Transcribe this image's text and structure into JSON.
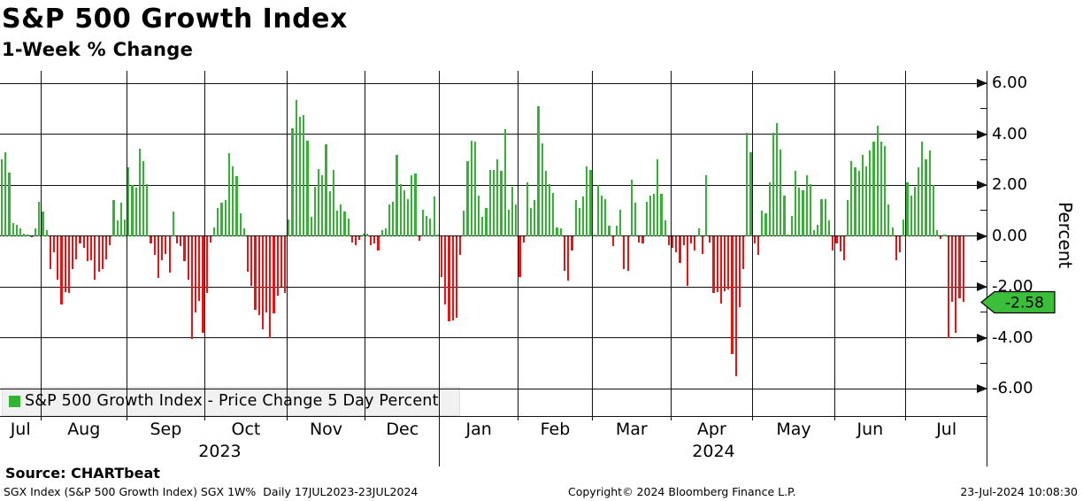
{
  "header": {
    "title": "S&P 500 Growth Index",
    "subtitle": "1-Week % Change"
  },
  "axis": {
    "percent_label": "Percent"
  },
  "legend": {
    "label": "S&P 500 Growth Index - Price Change 5 Day Percent",
    "swatch_color": "#32b432"
  },
  "badge": {
    "value": "-2.58",
    "color": "#3bbf3b"
  },
  "footer": {
    "source_label": "Source: CHARTbeat",
    "status_left": "SGX Index (S&P 500 Growth Index) SGX 1W%  Daily 17JUL2023-23JUL2024",
    "status_center": "Copyright© 2024 Bloomberg Finance L.P.",
    "status_right": "23-Jul-2024 10:08:30"
  },
  "chart_data": {
    "type": "bar",
    "title": "S&P 500 Growth Index - Price Change 5 Day Percent",
    "xlabel": "",
    "ylabel": "Percent",
    "ylim": [
      -7.1,
      6.5
    ],
    "grid": true,
    "legend_position": "bottom-left",
    "yticks": [
      6,
      4,
      2,
      0,
      -2,
      -4,
      -6
    ],
    "ytick_labels": [
      "6.00",
      "4.00",
      "2.00",
      "0.00",
      "-2.00",
      "-4.00",
      "-6.00"
    ],
    "yticks_minor": [
      5,
      3,
      1,
      -1,
      -3,
      -5
    ],
    "bar_colors": {
      "positive": "#32b432",
      "negative": "#ee1111"
    },
    "last_value": -2.58,
    "right_gap_slots": 6,
    "years": [
      {
        "label": "2023",
        "months": [
          0,
          6
        ]
      },
      {
        "label": "2024",
        "months": [
          6,
          13
        ]
      }
    ],
    "months": [
      {
        "label": "Jul",
        "values": [
          3.0,
          3.3,
          2.5,
          0.5,
          0.45,
          0.3,
          0.1,
          0.05,
          -0.05,
          0.3,
          1.35
        ]
      },
      {
        "label": "Aug",
        "values": [
          0.95,
          0.25,
          -1.3,
          -0.65,
          -1.7,
          -2.7,
          -2.2,
          -2.25,
          -1.3,
          -0.9,
          -0.3,
          -0.45,
          -1.0,
          -0.95,
          -1.7,
          -1.4,
          -1.3,
          -0.9,
          -0.35,
          1.4,
          0.6,
          1.3,
          0.65
        ]
      },
      {
        "label": "Sep",
        "values": [
          2.7,
          2.0,
          1.9,
          3.45,
          2.95,
          2.05,
          -0.3,
          -0.75,
          -1.65,
          -0.95,
          -0.7,
          -1.45,
          0.95,
          -0.3,
          -0.4,
          -1.0,
          -1.7,
          -4.05,
          -3.0,
          -2.55,
          -3.8
        ]
      },
      {
        "label": "Oct",
        "values": [
          -2.25,
          -0.25,
          0.35,
          1.1,
          1.3,
          1.4,
          3.25,
          2.75,
          2.35,
          0.9,
          0.3,
          -1.4,
          -1.95,
          -2.9,
          -3.1,
          -3.65,
          -3.0,
          -4.0,
          -3.05,
          -2.35,
          -2.0,
          -2.25
        ]
      },
      {
        "label": "Nov",
        "values": [
          0.65,
          4.25,
          5.35,
          4.7,
          4.75,
          3.75,
          0.75,
          1.95,
          2.65,
          2.4,
          3.6,
          1.75,
          2.6,
          1.0,
          1.25,
          0.95,
          0.7,
          -0.25,
          -0.35,
          -0.15,
          0.1
        ]
      },
      {
        "label": "Dec",
        "values": [
          0.1,
          -0.35,
          -0.3,
          -0.55,
          0.25,
          0.3,
          1.25,
          1.35,
          3.2,
          2.05,
          1.8,
          1.45,
          2.4,
          2.45,
          -0.2,
          1.05,
          0.8,
          0.7,
          1.55,
          0.05
        ]
      },
      {
        "label": "Jan",
        "values": [
          -1.6,
          -2.7,
          -3.35,
          -3.3,
          -3.2,
          -0.75,
          1.0,
          2.95,
          3.75,
          3.7,
          1.6,
          0.75,
          1.1,
          2.6,
          2.6,
          3.0,
          2.55,
          4.2,
          1.05,
          1.95,
          1.25
        ]
      },
      {
        "label": "Feb",
        "values": [
          -1.6,
          -0.25,
          2.1,
          1.1,
          1.4,
          5.1,
          3.65,
          2.55,
          2.05,
          1.7,
          0.35,
          0.3,
          -1.35,
          -1.75,
          -0.55,
          1.4,
          1.1,
          1.55,
          2.75,
          2.6
        ]
      },
      {
        "label": "Mar",
        "values": [
          0.05,
          2.0,
          1.6,
          1.45,
          0.4,
          -0.4,
          0.4,
          1.05,
          -1.3,
          -1.35,
          2.2,
          1.3,
          -0.25,
          -0.3,
          1.35,
          1.6,
          1.65,
          3.0,
          1.65,
          0.6,
          -0.35
        ]
      },
      {
        "label": "Apr",
        "values": [
          -0.45,
          -0.65,
          -1.05,
          -0.35,
          -1.95,
          -0.3,
          -0.55,
          0.3,
          -0.7,
          2.4,
          -0.25,
          -2.25,
          -2.2,
          -2.65,
          -2.15,
          -2.1,
          -4.65,
          -5.5,
          -2.8,
          -1.3,
          4.05,
          3.3
        ]
      },
      {
        "label": "May",
        "values": [
          -0.3,
          -0.75,
          1.0,
          0.9,
          2.1,
          4.05,
          4.45,
          3.4,
          1.6,
          0.05,
          0.8,
          2.55,
          1.9,
          1.8,
          2.4,
          2.05,
          0.25,
          0.45,
          1.45,
          1.45,
          0.6,
          -0.55
        ]
      },
      {
        "label": "Jun",
        "values": [
          -0.3,
          -0.6,
          -0.95,
          1.4,
          2.95,
          2.7,
          2.55,
          3.2,
          2.75,
          3.35,
          3.7,
          4.35,
          3.7,
          3.55,
          1.25,
          0.35,
          -0.95,
          -0.65,
          0.65
        ]
      },
      {
        "label": "Jul",
        "values": [
          2.1,
          1.6,
          1.95,
          2.7,
          3.7,
          3.0,
          3.35,
          2.0,
          0.25,
          -0.1,
          0.05,
          -4.0,
          -2.6,
          -3.8,
          -2.45,
          -2.58
        ]
      }
    ]
  }
}
